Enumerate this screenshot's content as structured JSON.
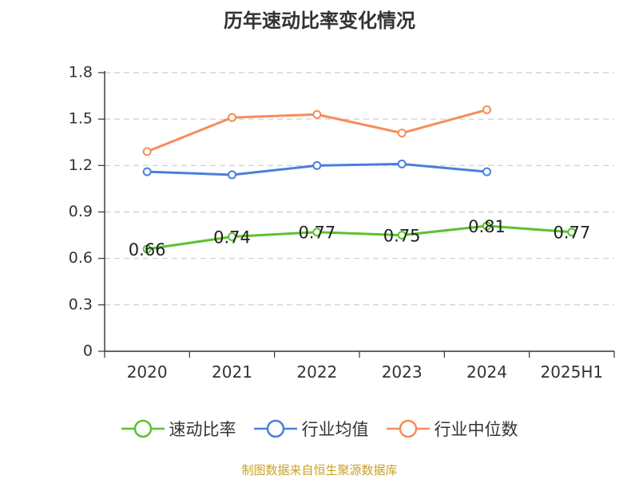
{
  "chart_data": {
    "type": "line",
    "title": "历年速动比率变化情况",
    "categories": [
      "2020",
      "2021",
      "2022",
      "2023",
      "2024",
      "2025H1"
    ],
    "ylim": [
      0,
      1.8
    ],
    "yticks": [
      "0",
      "0.3",
      "0.6",
      "0.9",
      "1.2",
      "1.5",
      "1.8"
    ],
    "grid": true,
    "legend_position": "bottom",
    "series": [
      {
        "name": "速动比率",
        "color": "#5cc22e",
        "values": [
          0.66,
          0.74,
          0.77,
          0.75,
          0.81,
          0.77
        ],
        "labels": [
          "0.66",
          "0.74",
          "0.77",
          "0.75",
          "0.81",
          "0.77"
        ]
      },
      {
        "name": "行业均值",
        "color": "#4a7fdc",
        "values": [
          1.16,
          1.14,
          1.2,
          1.21,
          1.16,
          null
        ]
      },
      {
        "name": "行业中位数",
        "color": "#f58d5a",
        "values": [
          1.29,
          1.51,
          1.53,
          1.41,
          1.56,
          null
        ]
      }
    ]
  },
  "source": "制图数据来自恒生聚源数据库"
}
